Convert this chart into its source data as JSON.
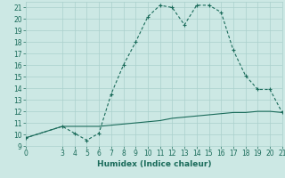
{
  "title": "",
  "xlabel": "Humidex (Indice chaleur)",
  "xlim": [
    0,
    21
  ],
  "ylim": [
    9,
    21.5
  ],
  "xticks": [
    0,
    3,
    4,
    5,
    6,
    7,
    8,
    9,
    10,
    11,
    12,
    13,
    14,
    15,
    16,
    17,
    18,
    19,
    20,
    21
  ],
  "yticks": [
    9,
    10,
    11,
    12,
    13,
    14,
    15,
    16,
    17,
    18,
    19,
    20,
    21
  ],
  "line_color": "#1a6b5a",
  "bg_color": "#cce8e4",
  "grid_color": "#aad0cc",
  "curve1_x": [
    0,
    3,
    4,
    5,
    6,
    7,
    8,
    9,
    10,
    11,
    12,
    13,
    14,
    15,
    16,
    17,
    18,
    19,
    20,
    21
  ],
  "curve1_y": [
    9.7,
    10.7,
    10.1,
    9.5,
    10.1,
    13.5,
    16.0,
    18.0,
    20.2,
    21.2,
    21.0,
    19.5,
    21.2,
    21.2,
    20.6,
    17.3,
    15.1,
    13.9,
    13.9,
    11.9
  ],
  "curve2_x": [
    0,
    3,
    4,
    5,
    6,
    7,
    8,
    9,
    10,
    11,
    12,
    13,
    14,
    15,
    16,
    17,
    18,
    19,
    20,
    21
  ],
  "curve2_y": [
    9.7,
    10.7,
    10.7,
    10.7,
    10.7,
    10.8,
    10.9,
    11.0,
    11.1,
    11.2,
    11.4,
    11.5,
    11.6,
    11.7,
    11.8,
    11.9,
    11.9,
    12.0,
    12.0,
    11.9
  ],
  "linewidth": 0.8,
  "fontsize_label": 6.5,
  "fontsize_tick": 5.5
}
